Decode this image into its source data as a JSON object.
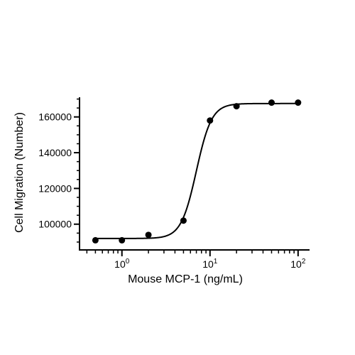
{
  "chart_data": {
    "type": "scatter",
    "xlabel": "Mouse MCP-1 (ng/mL)",
    "ylabel": "Cell Migration (Number)",
    "x_scale": "log10",
    "xlim": [
      0.33,
      135
    ],
    "ylim": [
      85600,
      171000
    ],
    "x_ticks": [
      {
        "value": 1,
        "label_base": "10",
        "label_exp": "0"
      },
      {
        "value": 10,
        "label_base": "10",
        "label_exp": "1"
      },
      {
        "value": 100,
        "label_base": "10",
        "label_exp": "2"
      }
    ],
    "y_ticks": [
      {
        "value": 100000,
        "label": "100000"
      },
      {
        "value": 120000,
        "label": "120000"
      },
      {
        "value": 140000,
        "label": "140000"
      },
      {
        "value": 160000,
        "label": "160000"
      }
    ],
    "y_minor_step": 5000,
    "grid": false,
    "legend": "none",
    "points": [
      {
        "x": 0.5,
        "y": 91000
      },
      {
        "x": 1,
        "y": 91000
      },
      {
        "x": 2,
        "y": 94000
      },
      {
        "x": 5,
        "y": 102000
      },
      {
        "x": 10,
        "y": 158000
      },
      {
        "x": 20,
        "y": 166000
      },
      {
        "x": 50,
        "y": 168000
      },
      {
        "x": 100,
        "y": 168000
      }
    ],
    "fit": {
      "model": "4PL",
      "bottom": 92000,
      "top": 167500,
      "ec50": 7.0,
      "hill": 5.0,
      "x_from": 0.5,
      "x_to": 100
    },
    "colors": {
      "marker": "#000000",
      "line": "#000000",
      "axis": "#000000"
    }
  }
}
